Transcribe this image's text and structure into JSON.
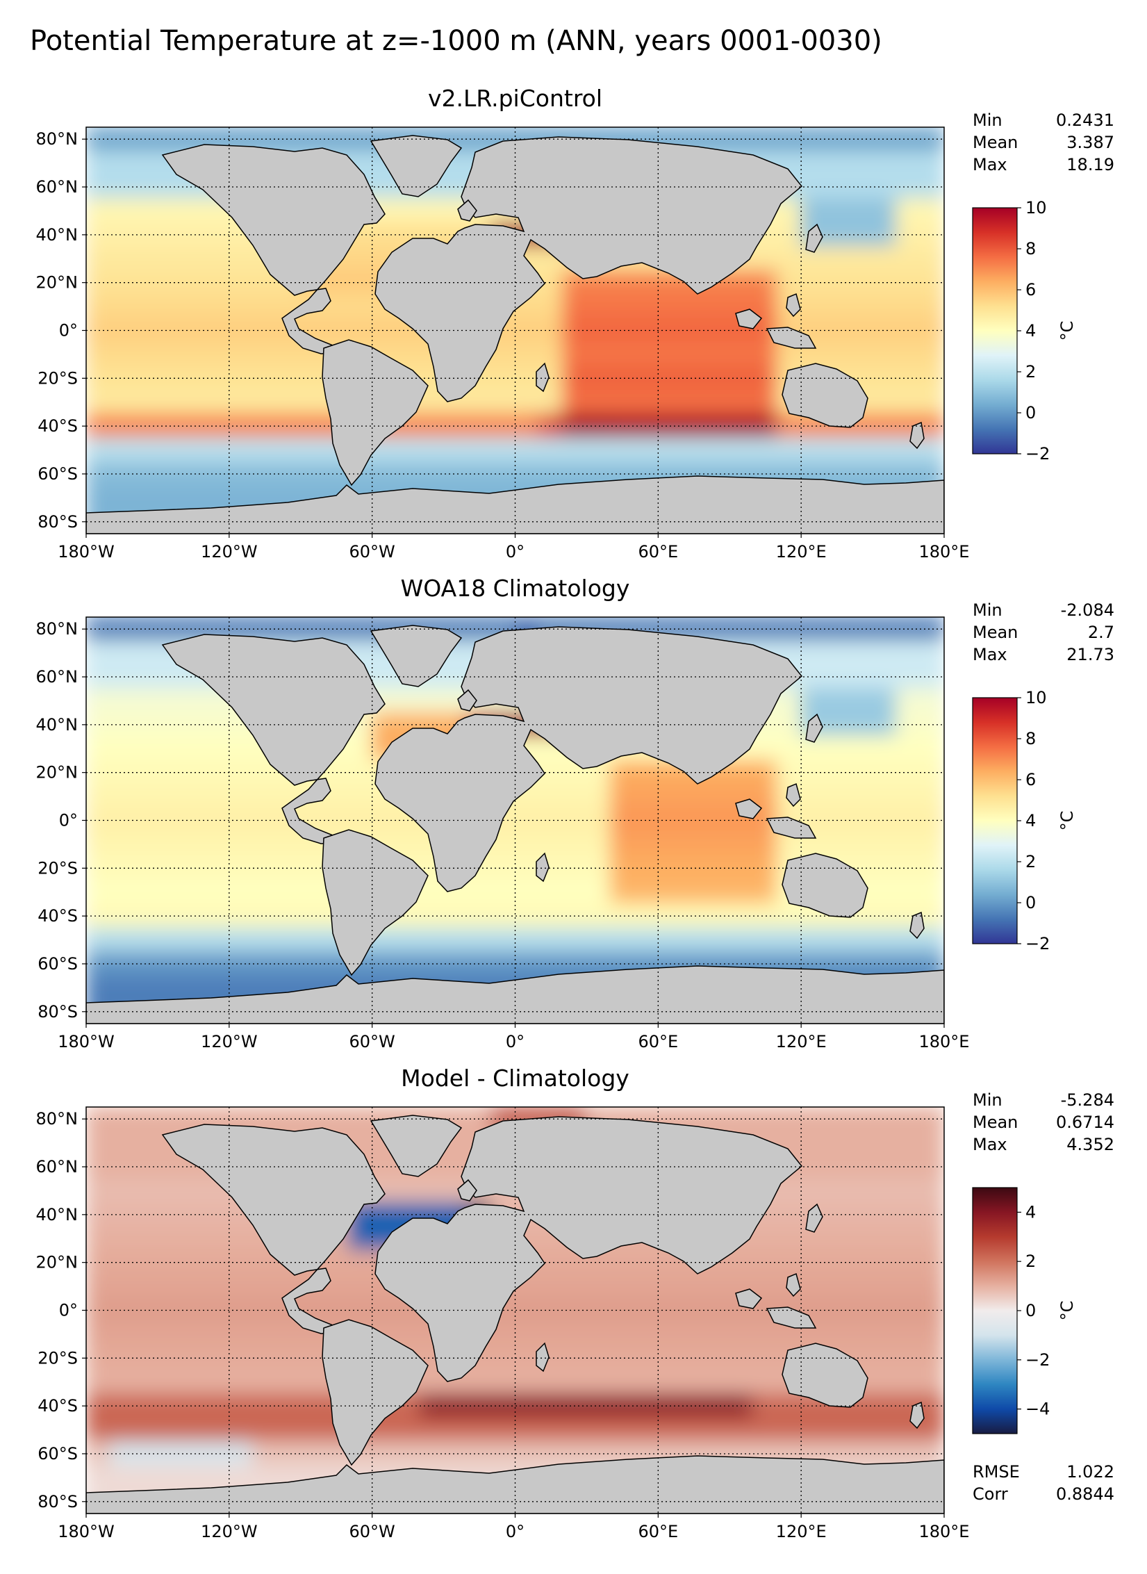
{
  "figure": {
    "suptitle": "Potential Temperature at z=-1000 m (ANN, years 0001-0030)"
  },
  "colors": {
    "land": "#c8c8c8",
    "no_data": "#ffffff",
    "frame": "#000000",
    "gridline": "#000000"
  },
  "chart_data": [
    {
      "type": "heatmap",
      "title": "v2.LR.piControl",
      "field": "model",
      "xlabel": "",
      "ylabel": "",
      "x_ticks": [
        "180°W",
        "120°W",
        "60°W",
        "0°",
        "60°E",
        "120°E",
        "180°E"
      ],
      "y_ticks": [
        "80°N",
        "60°N",
        "40°N",
        "20°N",
        "0°",
        "20°S",
        "40°S",
        "60°S",
        "80°S"
      ],
      "xlim": [
        -180,
        180
      ],
      "ylim": [
        -85,
        85
      ],
      "stats": [
        {
          "label": "Min",
          "value": "0.2431"
        },
        {
          "label": "Mean",
          "value": "3.387"
        },
        {
          "label": "Max",
          "value": "18.19"
        }
      ],
      "colorbar": {
        "label": "°C",
        "min": -2,
        "max": 10,
        "ticks": [
          "10",
          "8",
          "6",
          "4",
          "2",
          "0",
          "−2"
        ],
        "colormap": "RdYlBu_r",
        "stops": [
          "#313695",
          "#4575b4",
          "#74add1",
          "#abd9e9",
          "#e0f3f8",
          "#ffffbf",
          "#fee090",
          "#fdae61",
          "#f46d43",
          "#d73027",
          "#a50026"
        ]
      }
    },
    {
      "type": "heatmap",
      "title": "WOA18 Climatology",
      "field": "obs",
      "xlabel": "",
      "ylabel": "",
      "x_ticks": [
        "180°W",
        "120°W",
        "60°W",
        "0°",
        "60°E",
        "120°E",
        "180°E"
      ],
      "y_ticks": [
        "80°N",
        "60°N",
        "40°N",
        "20°N",
        "0°",
        "20°S",
        "40°S",
        "60°S",
        "80°S"
      ],
      "xlim": [
        -180,
        180
      ],
      "ylim": [
        -85,
        85
      ],
      "stats": [
        {
          "label": "Min",
          "value": "-2.084"
        },
        {
          "label": "Mean",
          "value": "2.7"
        },
        {
          "label": "Max",
          "value": "21.73"
        }
      ],
      "colorbar": {
        "label": "°C",
        "min": -2,
        "max": 10,
        "ticks": [
          "10",
          "8",
          "6",
          "4",
          "2",
          "0",
          "−2"
        ],
        "colormap": "RdYlBu_r",
        "stops": [
          "#313695",
          "#4575b4",
          "#74add1",
          "#abd9e9",
          "#e0f3f8",
          "#ffffbf",
          "#fee090",
          "#fdae61",
          "#f46d43",
          "#d73027",
          "#a50026"
        ]
      }
    },
    {
      "type": "heatmap",
      "title": "Model - Climatology",
      "field": "diff",
      "xlabel": "",
      "ylabel": "",
      "x_ticks": [
        "180°W",
        "120°W",
        "60°W",
        "0°",
        "60°E",
        "120°E",
        "180°E"
      ],
      "y_ticks": [
        "80°N",
        "60°N",
        "40°N",
        "20°N",
        "0°",
        "20°S",
        "40°S",
        "60°S",
        "80°S"
      ],
      "xlim": [
        -180,
        180
      ],
      "ylim": [
        -85,
        85
      ],
      "stats": [
        {
          "label": "Min",
          "value": "-5.284"
        },
        {
          "label": "Mean",
          "value": "0.6714"
        },
        {
          "label": "Max",
          "value": "4.352"
        }
      ],
      "extra_stats": [
        {
          "label": "RMSE",
          "value": "1.022"
        },
        {
          "label": "Corr",
          "value": "0.8844"
        }
      ],
      "colorbar": {
        "label": "°C",
        "min": -5,
        "max": 5,
        "ticks": [
          "4",
          "2",
          "0",
          "−2",
          "−4"
        ],
        "tick_values": [
          4,
          2,
          0,
          -2,
          -4
        ],
        "colormap": "balance",
        "stops": [
          "#181c43",
          "#0f4aa8",
          "#2e86c1",
          "#7eb6d9",
          "#d4e4ec",
          "#f1ecec",
          "#e6b0a0",
          "#d0735d",
          "#b53a2e",
          "#861623",
          "#3c0912"
        ]
      }
    }
  ]
}
